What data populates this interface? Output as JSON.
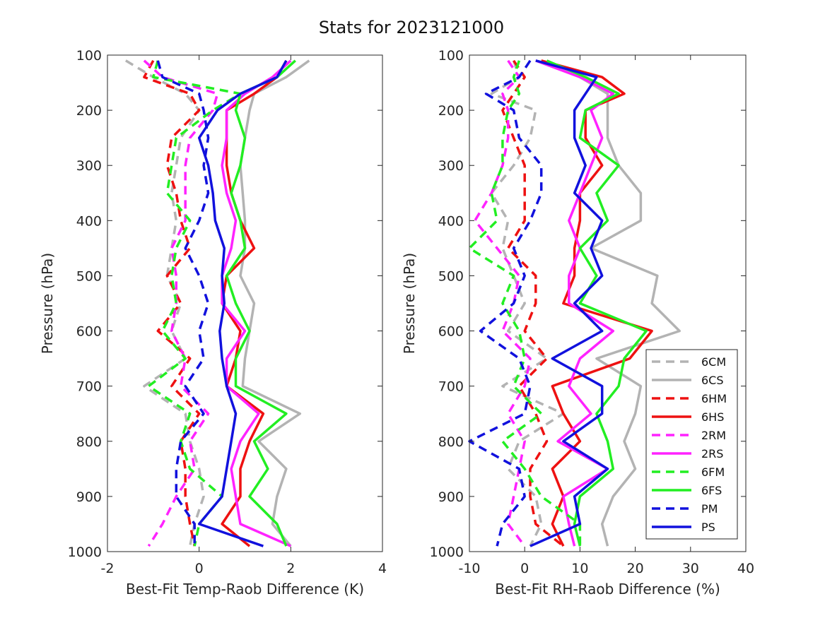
{
  "figure": {
    "title": "Stats for 2023121000"
  },
  "colors": {
    "6C": "#b3b3b3",
    "6H": "#ee1111",
    "2R": "#ff22ff",
    "6F": "#22ee22",
    "P": "#1111dd"
  },
  "legend": {
    "position": "lower-right of right panel",
    "entries": [
      {
        "label": "6CM",
        "color": "#b3b3b3",
        "style": "dashed"
      },
      {
        "label": "6CS",
        "color": "#b3b3b3",
        "style": "solid"
      },
      {
        "label": "6HM",
        "color": "#ee1111",
        "style": "dashed"
      },
      {
        "label": "6HS",
        "color": "#ee1111",
        "style": "solid"
      },
      {
        "label": "2RM",
        "color": "#ff22ff",
        "style": "dashed"
      },
      {
        "label": "2RS",
        "color": "#ff22ff",
        "style": "solid"
      },
      {
        "label": "6FM",
        "color": "#22ee22",
        "style": "dashed"
      },
      {
        "label": "6FS",
        "color": "#22ee22",
        "style": "solid"
      },
      {
        "label": "PM",
        "color": "#1111dd",
        "style": "dashed"
      },
      {
        "label": "PS",
        "color": "#1111dd",
        "style": "solid"
      }
    ]
  },
  "chart_data": [
    {
      "type": "line",
      "orientation": "vertical-profile",
      "xlabel": "Best-Fit Temp-Raob Difference (K)",
      "ylabel": "Pressure (hPa)",
      "xlim": [
        -2,
        4
      ],
      "xticks": [
        "-2",
        "0",
        "2",
        "4"
      ],
      "ylim": [
        100,
        1000
      ],
      "yticks": [
        "100",
        "200",
        "300",
        "400",
        "500",
        "600",
        "700",
        "800",
        "900",
        "1000"
      ],
      "y_inverted": true,
      "grid": false,
      "y": [
        110,
        140,
        170,
        200,
        250,
        300,
        350,
        400,
        450,
        500,
        550,
        600,
        650,
        700,
        750,
        800,
        850,
        900,
        950,
        990
      ],
      "series": [
        {
          "name": "6CM",
          "values": [
            -1.6,
            -1.0,
            -0.3,
            0.0,
            -0.4,
            -0.5,
            -0.6,
            -0.5,
            -0.6,
            -0.7,
            -0.4,
            -0.6,
            -0.3,
            -1.2,
            -0.3,
            -0.2,
            0.0,
            0.1,
            -0.1,
            -0.2
          ]
        },
        {
          "name": "6CS",
          "values": [
            2.4,
            1.9,
            1.2,
            1.1,
            1.0,
            0.9,
            0.95,
            1.0,
            1.0,
            0.9,
            1.2,
            1.1,
            1.0,
            0.95,
            2.2,
            1.3,
            1.9,
            1.7,
            1.6,
            2.0
          ]
        },
        {
          "name": "6HM",
          "values": [
            -1.0,
            -1.2,
            -0.2,
            0.0,
            -0.6,
            -0.7,
            -0.5,
            -0.4,
            -0.2,
            -0.7,
            -0.4,
            -0.9,
            -0.2,
            -0.6,
            0.0,
            -0.4,
            -0.3,
            -0.3,
            -0.2,
            -0.1
          ]
        },
        {
          "name": "6HS",
          "values": [
            1.9,
            1.7,
            1.2,
            0.6,
            0.6,
            0.6,
            0.7,
            0.9,
            1.2,
            0.6,
            0.5,
            0.9,
            0.8,
            0.6,
            1.4,
            1.1,
            0.9,
            0.9,
            0.5,
            1.1
          ]
        },
        {
          "name": "2RM",
          "values": [
            -1.2,
            -0.8,
            0.4,
            0.3,
            -0.2,
            -0.3,
            -0.3,
            -0.3,
            -0.6,
            -0.5,
            -0.5,
            -0.6,
            -0.3,
            -0.4,
            0.2,
            -0.2,
            -0.1,
            -0.5,
            -0.8,
            -1.1
          ]
        },
        {
          "name": "2RS",
          "values": [
            2.0,
            1.6,
            1.0,
            0.6,
            0.6,
            0.5,
            0.6,
            0.8,
            0.7,
            0.5,
            0.5,
            1.0,
            0.6,
            0.6,
            1.3,
            0.9,
            0.7,
            0.8,
            0.9,
            2.0
          ]
        },
        {
          "name": "6FM",
          "values": [
            -0.9,
            -1.0,
            0.9,
            0.3,
            -0.5,
            -0.6,
            -0.7,
            -0.2,
            -0.5,
            -0.6,
            -0.5,
            -0.8,
            -0.3,
            -1.1,
            -0.2,
            -0.4,
            -0.2,
            0.5,
            0.0,
            -0.1
          ]
        },
        {
          "name": "6FS",
          "values": [
            2.1,
            1.7,
            0.9,
            0.8,
            1.0,
            0.9,
            0.7,
            0.9,
            1.0,
            0.6,
            0.8,
            1.1,
            0.8,
            0.8,
            1.9,
            1.2,
            1.5,
            1.1,
            1.7,
            1.9
          ]
        },
        {
          "name": "PM",
          "values": [
            -0.9,
            -0.8,
            0.0,
            0.1,
            0.2,
            0.1,
            0.2,
            0.0,
            -0.3,
            0.0,
            0.2,
            0.0,
            0.1,
            -0.3,
            0.1,
            -0.4,
            -0.5,
            -0.5,
            -0.1,
            -0.1
          ]
        },
        {
          "name": "PS",
          "values": [
            1.9,
            1.7,
            0.9,
            0.4,
            0.0,
            0.2,
            0.3,
            0.35,
            0.55,
            0.5,
            0.55,
            0.45,
            0.5,
            0.6,
            0.8,
            0.7,
            0.6,
            0.5,
            0.0,
            1.4
          ]
        }
      ]
    },
    {
      "type": "line",
      "orientation": "vertical-profile",
      "xlabel": "Best-Fit RH-Raob Difference (%)",
      "ylabel": "Pressure (hPa)",
      "xlim": [
        -10,
        40
      ],
      "xticks": [
        "-10",
        "0",
        "10",
        "20",
        "30",
        "40"
      ],
      "ylim": [
        100,
        1000
      ],
      "yticks": [
        "100",
        "200",
        "300",
        "400",
        "500",
        "600",
        "700",
        "800",
        "900",
        "1000"
      ],
      "y_inverted": true,
      "grid": false,
      "y": [
        110,
        140,
        170,
        200,
        250,
        300,
        350,
        400,
        450,
        500,
        550,
        600,
        650,
        700,
        750,
        800,
        850,
        900,
        950,
        990
      ],
      "series": [
        {
          "name": "6CM",
          "values": [
            -2,
            -1,
            -6,
            2,
            1,
            -2,
            -6,
            -3,
            -4,
            -2,
            0,
            -3,
            4,
            -4,
            7,
            -1,
            -3,
            2,
            3,
            1
          ]
        },
        {
          "name": "6CS",
          "values": [
            3,
            10,
            15,
            15,
            15,
            17,
            21,
            21,
            12,
            24,
            23,
            28,
            13,
            21,
            20,
            18,
            20,
            16,
            14,
            15
          ]
        },
        {
          "name": "6HM",
          "values": [
            -2,
            0,
            -2,
            -4,
            -2,
            0,
            0,
            0,
            -3,
            2,
            2,
            0,
            4,
            -1,
            2,
            4,
            1,
            1,
            2,
            7
          ]
        },
        {
          "name": "6HS",
          "values": [
            3,
            14,
            18,
            11,
            11,
            14,
            10,
            10,
            9,
            9,
            7,
            23,
            19,
            5,
            7,
            10,
            5,
            7,
            5,
            7
          ]
        },
        {
          "name": "2RM",
          "values": [
            -3,
            -1,
            -4,
            -3,
            -3,
            -4,
            -6,
            -9,
            -5,
            -1,
            -2,
            -4,
            1,
            0,
            -3,
            0,
            -1,
            -2,
            -3,
            0
          ]
        },
        {
          "name": "2RS",
          "values": [
            2,
            10,
            16,
            12,
            14,
            12,
            10,
            8,
            10,
            8,
            8,
            16,
            10,
            8,
            12,
            6,
            15,
            7,
            8,
            9
          ]
        },
        {
          "name": "6FM",
          "values": [
            -1,
            -2,
            -1,
            -3,
            -4,
            -4,
            -6,
            -5,
            -10,
            -2,
            -4,
            -1,
            0,
            -2,
            3,
            -4,
            0,
            3,
            10,
            10
          ]
        },
        {
          "name": "6FS",
          "values": [
            4,
            11,
            17,
            11,
            10,
            17,
            13,
            15,
            10,
            13,
            10,
            22,
            18,
            17,
            13,
            15,
            16,
            10,
            9,
            10
          ]
        },
        {
          "name": "PM",
          "values": [
            1,
            -1,
            -7,
            -2,
            -1,
            3,
            3,
            1,
            -2,
            0,
            -2,
            -8,
            -1,
            1,
            0,
            -10,
            -1,
            0,
            -4,
            -5
          ]
        },
        {
          "name": "PS",
          "values": [
            2,
            13,
            11,
            9,
            9,
            11,
            9,
            14,
            12,
            14,
            9,
            14,
            5,
            14,
            14,
            7,
            15,
            9,
            10,
            1
          ]
        }
      ]
    }
  ]
}
